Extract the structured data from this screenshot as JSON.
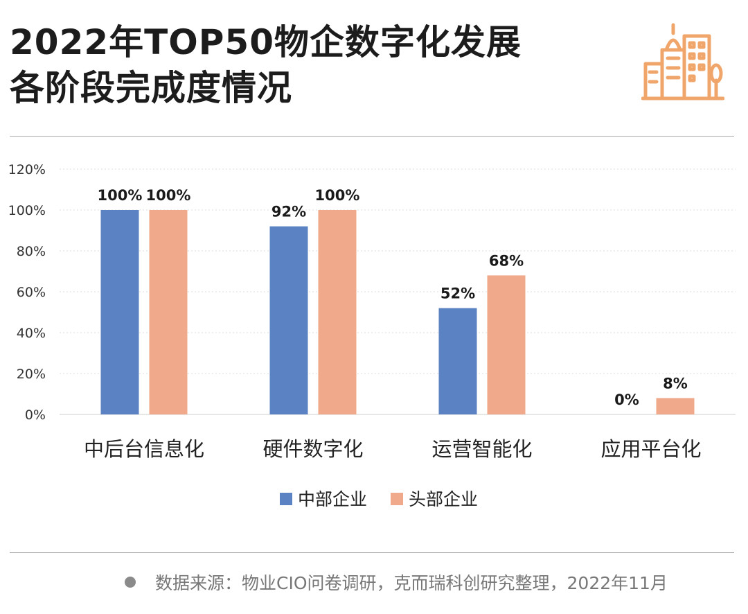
{
  "header": {
    "title_line1": "2022年TOP50物企数字化发展",
    "title_line2": "各阶段完成度情况"
  },
  "logo": {
    "icon": "city-buildings-icon",
    "color": "#F0A56B"
  },
  "footer": {
    "source": "数据来源：物业CIO问卷调研，克而瑞科创研究整理，2022年11月"
  },
  "chart_data": {
    "type": "bar",
    "categories": [
      "中后台信息化",
      "硬件数字化",
      "运营智能化",
      "应用平台化"
    ],
    "series": [
      {
        "name": "中部企业",
        "values": [
          100,
          92,
          52,
          0
        ],
        "labels": [
          "100%",
          "92%",
          "52%",
          "0%"
        ],
        "color": "#5B82C2"
      },
      {
        "name": "头部企业",
        "values": [
          100,
          100,
          68,
          8
        ],
        "labels": [
          "100%",
          "100%",
          "68%",
          "8%"
        ],
        "color": "#F0A98A"
      }
    ],
    "y_ticks": [
      "0%",
      "20%",
      "40%",
      "60%",
      "80%",
      "100%",
      "120%"
    ],
    "ylim": [
      0,
      120
    ],
    "grid": true,
    "legend": "bottom-center"
  }
}
